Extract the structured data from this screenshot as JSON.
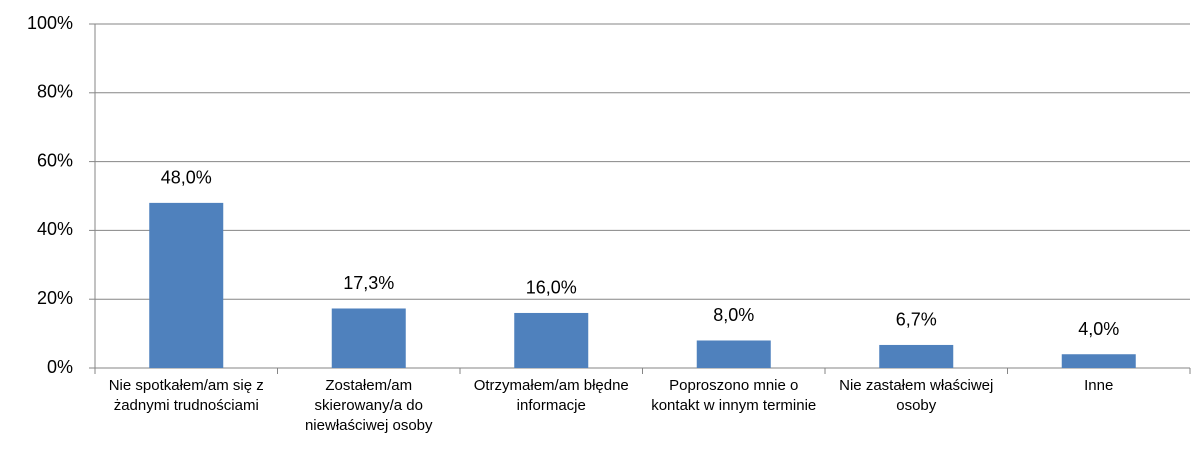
{
  "chart_data": {
    "type": "bar",
    "categories": [
      "Nie spotkałem/am się z żadnymi trudnościami",
      "Zostałem/am skierowany/a do niewłaściwej osoby",
      "Otrzymałem/am błędne informacje",
      "Poproszono mnie o kontakt w innym terminie",
      "Nie zastałem właściwej osoby",
      "Inne"
    ],
    "values": [
      48.0,
      17.3,
      16.0,
      8.0,
      6.7,
      4.0
    ],
    "value_labels": [
      "48,0%",
      "17,3%",
      "16,0%",
      "8,0%",
      "6,7%",
      "4,0%"
    ],
    "color": "#4f81bd",
    "ylim": [
      0,
      100
    ],
    "yticks": [
      {
        "value": 0,
        "label": "0%"
      },
      {
        "value": 20,
        "label": "20%"
      },
      {
        "value": 40,
        "label": "40%"
      },
      {
        "value": 60,
        "label": "60%"
      },
      {
        "value": 80,
        "label": "80%"
      },
      {
        "value": 100,
        "label": "100%"
      }
    ],
    "grid": true
  }
}
